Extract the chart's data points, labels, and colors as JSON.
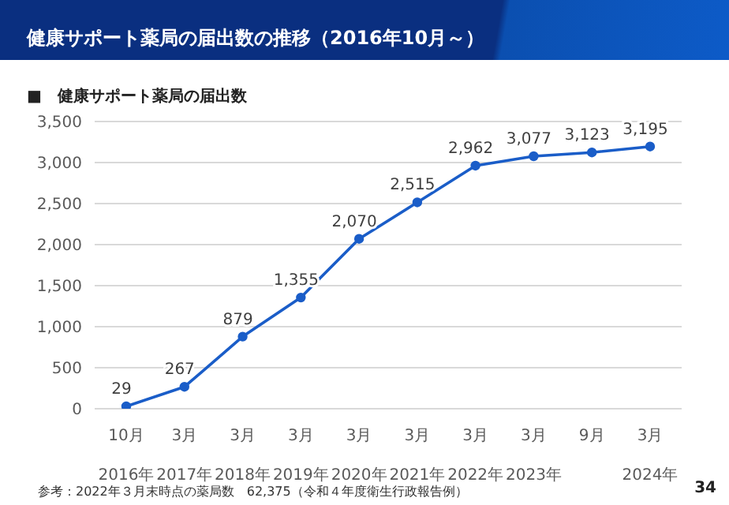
{
  "chart_data": {
    "type": "line",
    "title": "健康サポート薬局の届出数の推移（2016年10月～）",
    "subtitle": "■　健康サポート薬局の届出数",
    "categories": [
      "10月\n2016年",
      "3月\n2017年",
      "3月\n2018年",
      "3月\n2019年",
      "3月\n2020年",
      "3月\n2021年",
      "3月\n2022年",
      "3月\n2023年",
      "9月",
      "3月\n2024年"
    ],
    "series": [
      {
        "color": "#1a5dc8",
        "values": [
          29,
          267,
          879,
          1355,
          2070,
          2515,
          2962,
          3077,
          3123,
          3195
        ],
        "value_labels": [
          "29",
          "267",
          "879",
          "1,355",
          "2,070",
          "2,515",
          "2,962",
          "3,077",
          "3,123",
          "3,195"
        ]
      }
    ],
    "ylim": [
      0,
      3500
    ],
    "yticks": [
      {
        "value": 0,
        "label": "0"
      },
      {
        "value": 500,
        "label": "500"
      },
      {
        "value": 1000,
        "label": "1,000"
      },
      {
        "value": 1500,
        "label": "1,500"
      },
      {
        "value": 2000,
        "label": "2,000"
      },
      {
        "value": 2500,
        "label": "2,500"
      },
      {
        "value": 3000,
        "label": "3,000"
      },
      {
        "value": 3500,
        "label": "3,500"
      }
    ],
    "grid": "y",
    "marker": "circle",
    "line_style": "solid",
    "annotations": [
      "参考：2022年３月末時点の薬局数　62,375（令和４年度衛生行政報告例）",
      "34"
    ]
  }
}
